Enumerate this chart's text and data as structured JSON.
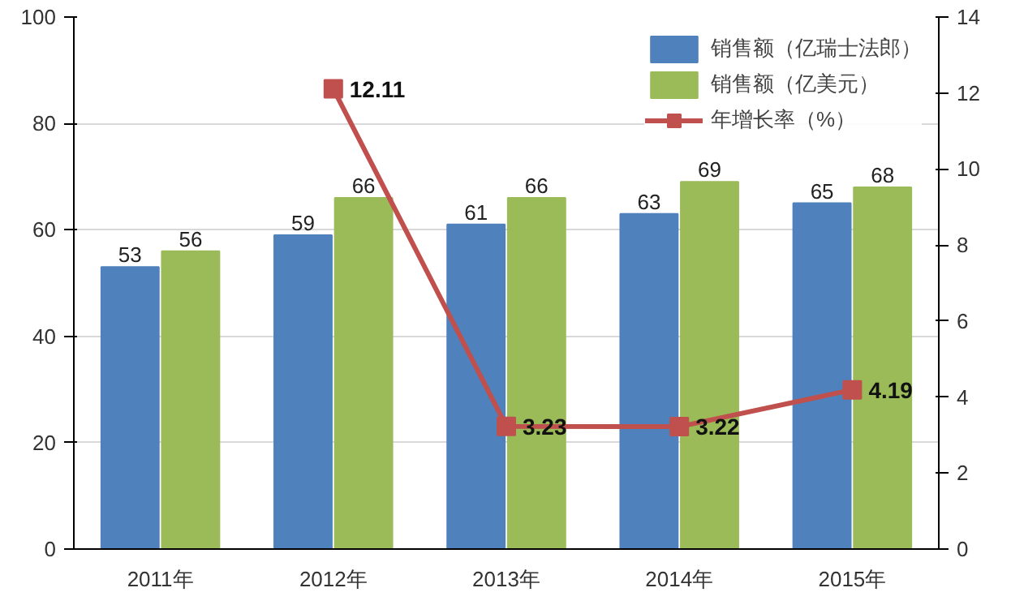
{
  "chart_data": {
    "type": "bar",
    "categories": [
      "2011年",
      "2012年",
      "2013年",
      "2014年",
      "2015年"
    ],
    "series": [
      {
        "name": "销售额（亿瑞士法郎）",
        "color": "#4f81bd",
        "values": [
          53,
          59,
          61,
          63,
          65
        ]
      },
      {
        "name": "销售额（亿美元）",
        "color": "#9bbb59",
        "values": [
          56,
          66,
          66,
          69,
          68
        ]
      },
      {
        "name": "年增长率（%）",
        "color": "#c0504d",
        "type": "line",
        "axis": "y2",
        "marker": "square",
        "values": [
          null,
          12.11,
          3.23,
          3.22,
          4.19
        ]
      }
    ],
    "ylim": [
      0,
      100
    ],
    "yticks": [
      0,
      20,
      40,
      60,
      80,
      100
    ],
    "y2lim": [
      0,
      14
    ],
    "y2ticks": [
      0,
      2,
      4,
      6,
      8,
      10,
      12,
      14
    ],
    "grid": "y",
    "legend": "top right",
    "data_labels": true
  }
}
